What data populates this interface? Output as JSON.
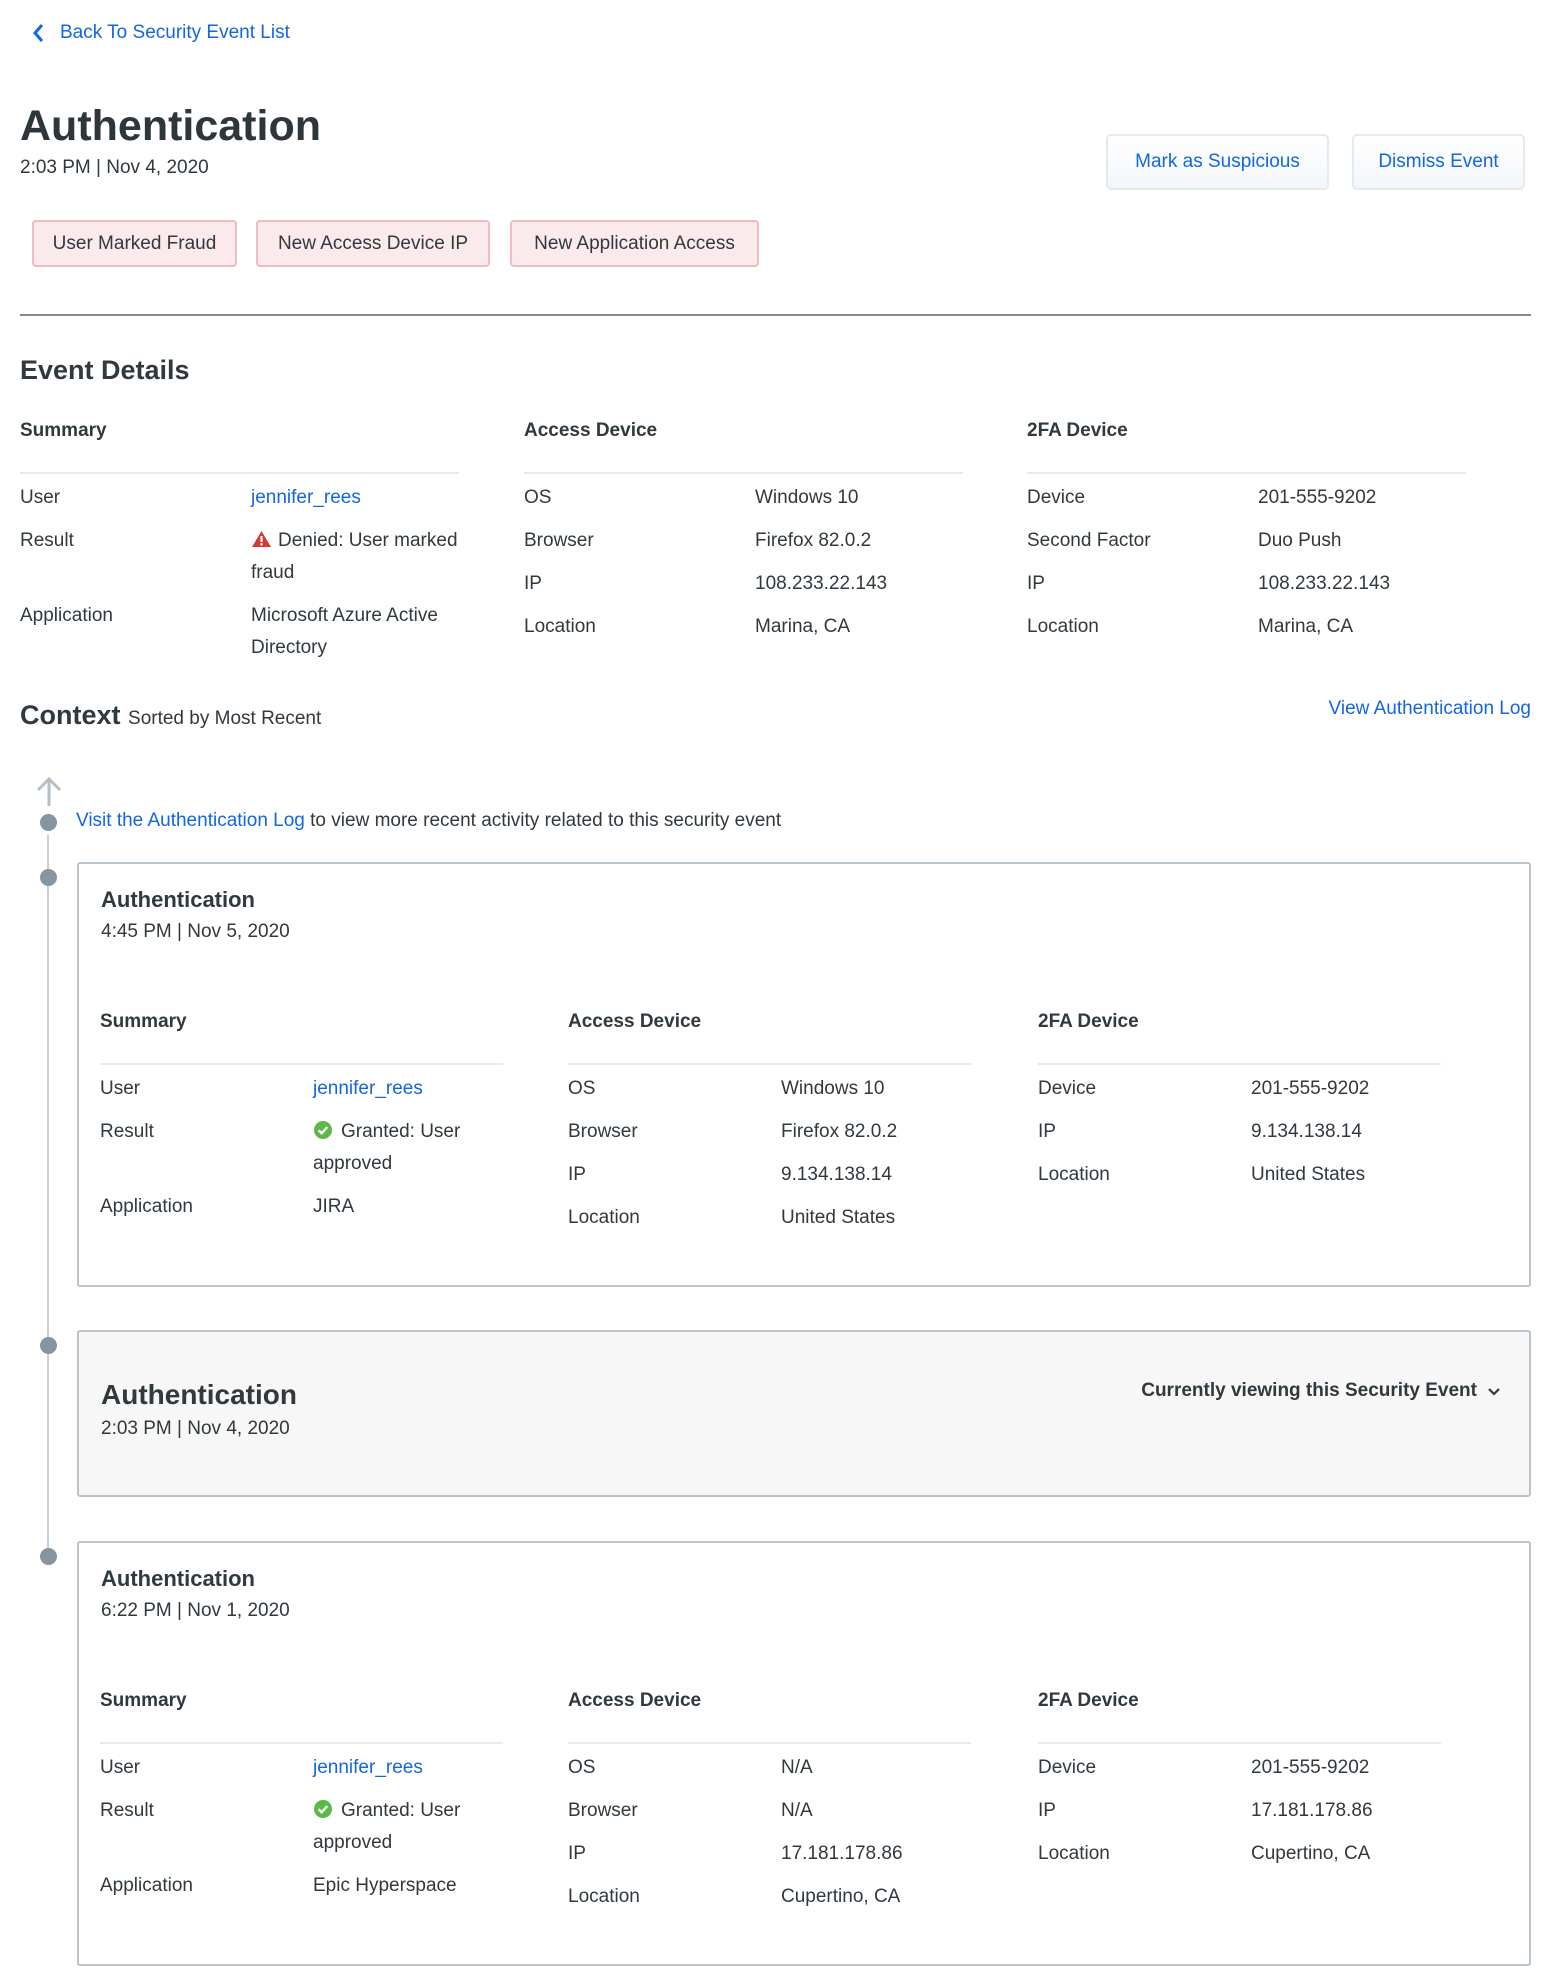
{
  "back_link": "Back To Security Event List",
  "header": {
    "title": "Authentication",
    "datetime": "2:03 PM | Nov 4, 2020"
  },
  "actions": {
    "mark_suspicious": "Mark as Suspicious",
    "dismiss": "Dismiss Event"
  },
  "tags": [
    "User Marked Fraud",
    "New Access Device IP",
    "New Application Access"
  ],
  "event_details": {
    "heading": "Event Details",
    "columns": [
      {
        "title": "Summary",
        "rows": [
          {
            "label": "User",
            "value": "jennifer_rees",
            "link": true
          },
          {
            "label": "Result",
            "value": "Denied: User marked fraud",
            "status": "denied"
          },
          {
            "label": "Application",
            "value": "Microsoft Azure Active Directory"
          }
        ]
      },
      {
        "title": "Access Device",
        "rows": [
          {
            "label": "OS",
            "value": "Windows 10"
          },
          {
            "label": "Browser",
            "value": "Firefox 82.0.2"
          },
          {
            "label": "IP",
            "value": "108.233.22.143"
          },
          {
            "label": "Location",
            "value": "Marina, CA"
          }
        ]
      },
      {
        "title": "2FA Device",
        "rows": [
          {
            "label": "Device",
            "value": "201-555-9202"
          },
          {
            "label": "Second Factor",
            "value": "Duo Push"
          },
          {
            "label": "IP",
            "value": "108.233.22.143"
          },
          {
            "label": "Location",
            "value": "Marina, CA"
          }
        ]
      }
    ]
  },
  "context": {
    "heading": "Context",
    "sort_note": "Sorted by Most Recent",
    "view_log": "View Authentication Log",
    "visit_link": "Visit the Authentication Log",
    "visit_text": " to view more recent activity related to this security event",
    "current_label": "Currently viewing this Security Event",
    "events": [
      {
        "title": "Authentication",
        "datetime": "4:45 PM | Nov 5, 2020",
        "columns": [
          {
            "title": "Summary",
            "rows": [
              {
                "label": "User",
                "value": "jennifer_rees",
                "link": true
              },
              {
                "label": "Result",
                "value": "Granted: User approved",
                "status": "granted"
              },
              {
                "label": "Application",
                "value": "JIRA"
              }
            ]
          },
          {
            "title": "Access Device",
            "rows": [
              {
                "label": "OS",
                "value": "Windows 10"
              },
              {
                "label": "Browser",
                "value": "Firefox 82.0.2"
              },
              {
                "label": "IP",
                "value": "9.134.138.14"
              },
              {
                "label": "Location",
                "value": "United States"
              }
            ]
          },
          {
            "title": "2FA Device",
            "rows": [
              {
                "label": "Device",
                "value": "201-555-9202"
              },
              {
                "label": "IP",
                "value": "9.134.138.14"
              },
              {
                "label": "Location",
                "value": "United States"
              }
            ]
          }
        ]
      },
      {
        "title": "Authentication",
        "datetime": "2:03 PM | Nov 4, 2020",
        "current": true
      },
      {
        "title": "Authentication",
        "datetime": "6:22 PM | Nov 1, 2020",
        "columns": [
          {
            "title": "Summary",
            "rows": [
              {
                "label": "User",
                "value": "jennifer_rees",
                "link": true
              },
              {
                "label": "Result",
                "value": "Granted: User approved",
                "status": "granted"
              },
              {
                "label": "Application",
                "value": "Epic Hyperspace"
              }
            ]
          },
          {
            "title": "Access Device",
            "rows": [
              {
                "label": "OS",
                "value": "N/A"
              },
              {
                "label": "Browser",
                "value": "N/A"
              },
              {
                "label": "IP",
                "value": "17.181.178.86"
              },
              {
                "label": "Location",
                "value": "Cupertino, CA"
              }
            ]
          },
          {
            "title": "2FA Device",
            "rows": [
              {
                "label": "Device",
                "value": "201-555-9202"
              },
              {
                "label": "IP",
                "value": "17.181.178.86"
              },
              {
                "label": "Location",
                "value": "Cupertino, CA"
              }
            ]
          }
        ]
      }
    ]
  }
}
